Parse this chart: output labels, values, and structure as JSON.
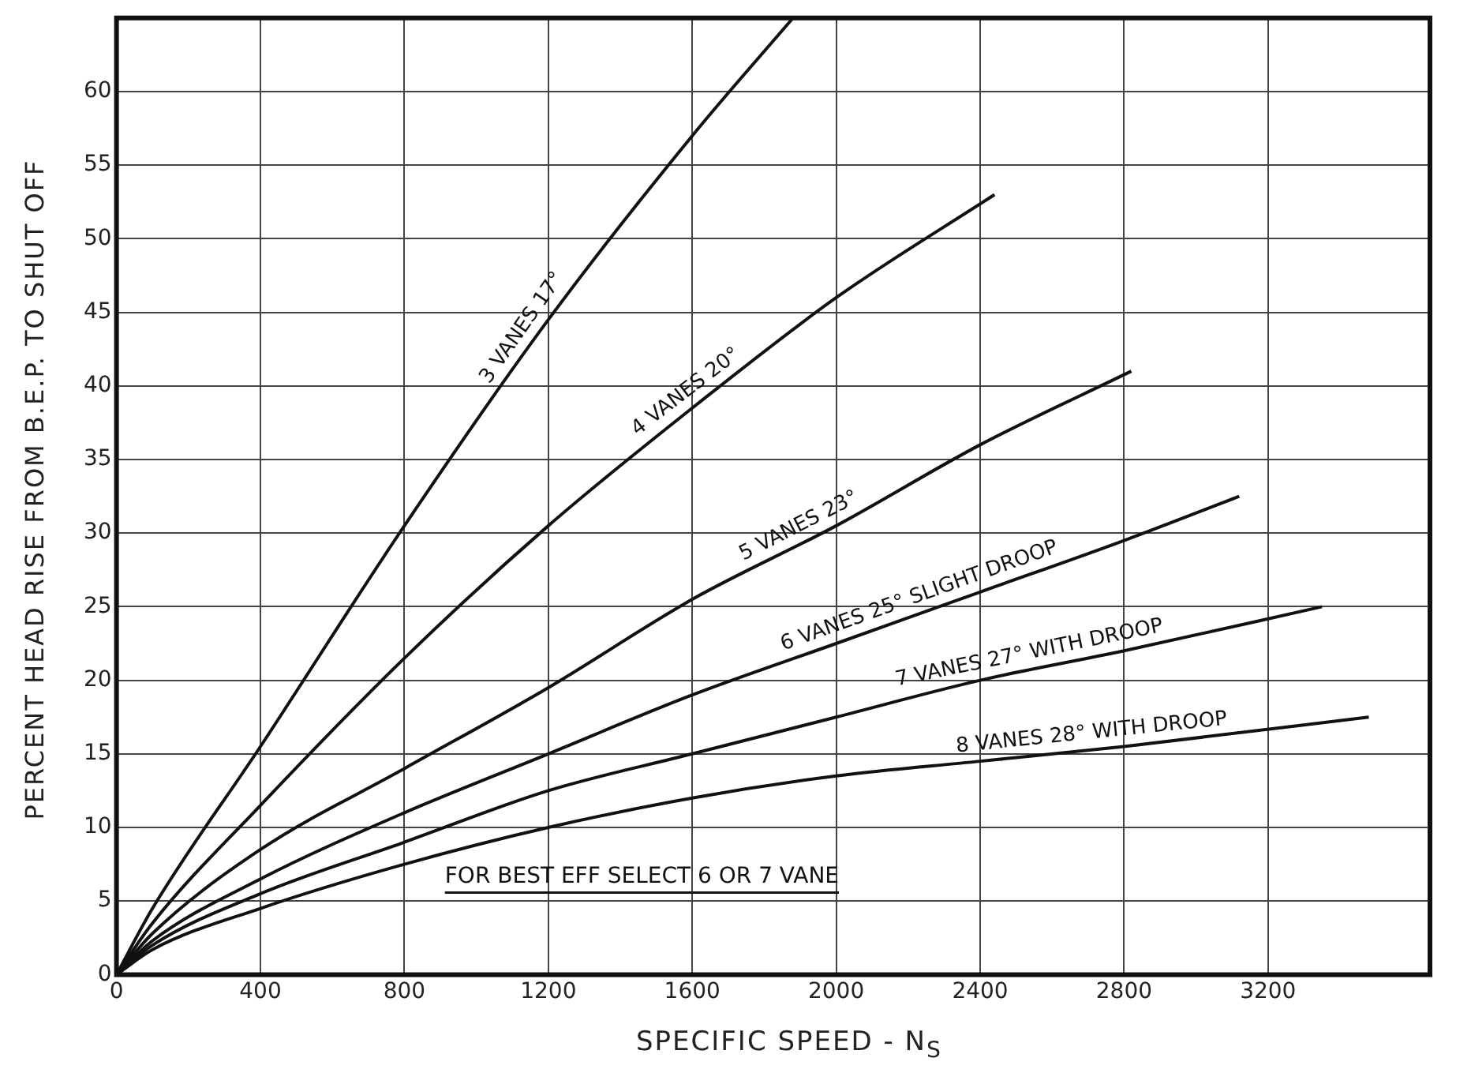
{
  "chart_data": {
    "type": "line",
    "xlabel": "SPECIFIC  SPEED - N$_{S}$",
    "ylabel": "PERCENT  HEAD  RISE  FROM  B.E.P.  TO  SHUT  OFF",
    "xlim": [
      0,
      3650
    ],
    "ylim": [
      0,
      65
    ],
    "xticks": [
      0,
      400,
      800,
      1200,
      1600,
      2000,
      2400,
      2800,
      3200
    ],
    "yticks": [
      0,
      5,
      10,
      15,
      20,
      25,
      30,
      35,
      40,
      45,
      50,
      55,
      60
    ],
    "grid": true,
    "marker": "none",
    "line_style": "solid",
    "legend": false,
    "annotations": [
      "FOR BEST EFF SELECT 6 OR 7 VANE"
    ],
    "series": [
      {
        "name": "3 VANES 17°",
        "color": "#111111",
        "x": [
          0,
          100,
          400,
          800,
          1200,
          1600,
          1880
        ],
        "values": [
          0,
          4.5,
          15.5,
          30.5,
          44.5,
          57,
          65
        ]
      },
      {
        "name": "4 VANES 20°",
        "color": "#111111",
        "x": [
          0,
          100,
          400,
          800,
          1200,
          1600,
          2000,
          2440
        ],
        "values": [
          0,
          3.5,
          11.5,
          21.5,
          30.5,
          38.5,
          46,
          53
        ]
      },
      {
        "name": "5 VANES 23°",
        "color": "#111111",
        "x": [
          0,
          100,
          400,
          800,
          1200,
          1600,
          2000,
          2400,
          2820
        ],
        "values": [
          0,
          2.8,
          8.5,
          14,
          19.5,
          25.5,
          30.5,
          36,
          41
        ]
      },
      {
        "name": "6 VANES 25° SLIGHT DROOP",
        "color": "#111111",
        "x": [
          0,
          100,
          400,
          800,
          1200,
          1600,
          2000,
          2400,
          2800,
          3120
        ],
        "values": [
          0,
          2.3,
          6.5,
          11,
          15,
          19,
          22.5,
          26,
          29.5,
          32.5
        ]
      },
      {
        "name": "7 VANES 27° WITH DROOP",
        "color": "#111111",
        "x": [
          0,
          100,
          400,
          800,
          1200,
          1600,
          2000,
          2400,
          2800,
          3350
        ],
        "values": [
          0,
          2,
          5.5,
          9,
          12.5,
          15,
          17.5,
          20,
          22,
          25
        ]
      },
      {
        "name": "8 VANES 28° WITH DROOP",
        "color": "#111111",
        "x": [
          0,
          100,
          400,
          800,
          1200,
          1600,
          2000,
          2400,
          2800,
          3480
        ],
        "values": [
          0,
          1.7,
          4.5,
          7.5,
          10,
          12,
          13.5,
          14.5,
          15.5,
          17.5
        ]
      }
    ]
  }
}
